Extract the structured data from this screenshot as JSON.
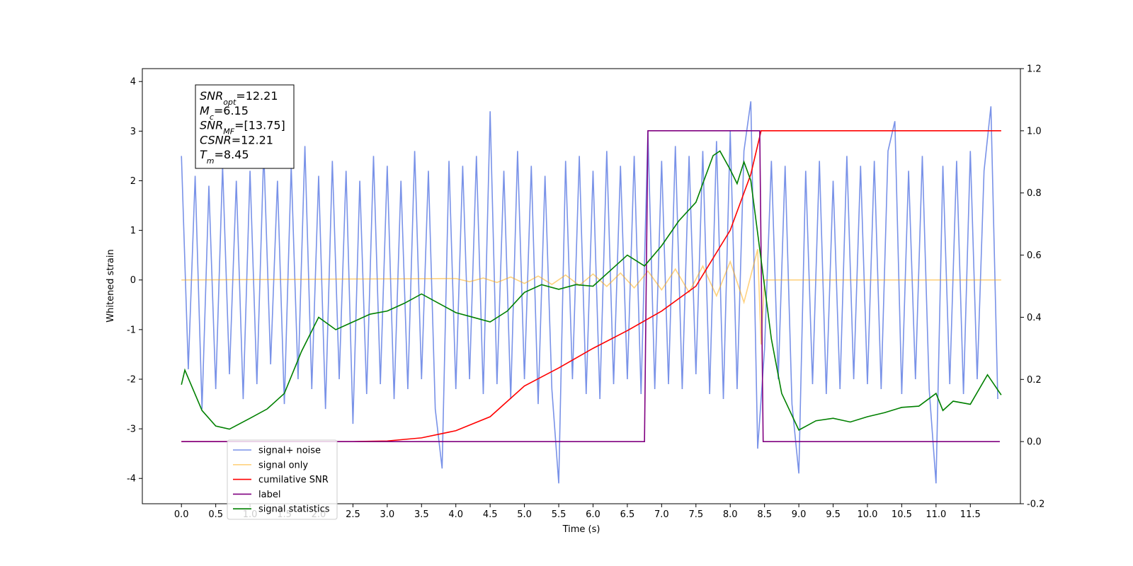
{
  "chart_data": {
    "type": "line",
    "xlabel": "Time (s)",
    "ylabel": "Whitened strain",
    "xlim": [
      -0.57,
      12.23
    ],
    "ylim": [
      -4.51,
      4.26
    ],
    "y2lim": [
      -0.2,
      1.2
    ],
    "xticks": [
      {
        "value": 0,
        "label": "0.0"
      },
      0.5,
      {
        "value": 1,
        "label": "1.0"
      },
      1.5,
      {
        "value": 2,
        "label": "2.0"
      },
      2.5,
      {
        "value": 3,
        "label": "3.0"
      },
      3.5,
      {
        "value": 4,
        "label": "4.0"
      },
      4.5,
      {
        "value": 5,
        "label": "5.0"
      },
      5.5,
      {
        "value": 6,
        "label": "6.0"
      },
      6.5,
      {
        "value": 7,
        "label": "7.0"
      },
      7.5,
      {
        "value": 8,
        "label": "8.0"
      },
      8.5,
      {
        "value": 9,
        "label": "9.0"
      },
      9.5,
      {
        "value": 10,
        "label": "10.0"
      },
      10.5,
      {
        "value": 11,
        "label": "11.0"
      },
      11.5
    ],
    "yticks": [
      -4,
      -3,
      -2,
      -1,
      0,
      1,
      2,
      3,
      4
    ],
    "y2ticks": [
      -0.2,
      {
        "value": 0,
        "label": "0.0"
      },
      0.2,
      0.4,
      0.6,
      0.8,
      {
        "value": 1,
        "label": "1.0"
      },
      1.2
    ],
    "legend_loc": "lower left",
    "annotations": [
      {
        "main": "SNR",
        "sub": "opt",
        "rest": "=12.21"
      },
      {
        "main": "M",
        "sub": "c",
        "rest": "=6.15"
      },
      {
        "main": "SNR",
        "sub": "MF",
        "rest": "=[13.75]"
      },
      {
        "main": "CSNR",
        "rest": "=12.21"
      },
      {
        "main": "T",
        "sub": "m",
        "rest": "=8.45"
      }
    ],
    "series": [
      {
        "name": "signal+ noise",
        "color": "#6a86e5",
        "opacity": 0.9,
        "x": [
          0,
          0.1,
          0.2,
          0.3,
          0.4,
          0.5,
          0.6,
          0.7,
          0.8,
          0.9,
          1,
          1.1,
          1.2,
          1.3,
          1.4,
          1.5,
          1.6,
          1.7,
          1.8,
          1.9,
          2,
          2.1,
          2.2,
          2.3,
          2.4,
          2.5,
          2.6,
          2.7,
          2.8,
          2.9,
          3,
          3.1,
          3.2,
          3.3,
          3.4,
          3.5,
          3.6,
          3.7,
          3.8,
          3.9,
          4,
          4.1,
          4.2,
          4.3,
          4.4,
          4.5,
          4.6,
          4.7,
          4.8,
          4.9,
          5,
          5.1,
          5.2,
          5.3,
          5.4,
          5.5,
          5.6,
          5.7,
          5.8,
          5.9,
          6,
          6.1,
          6.2,
          6.3,
          6.4,
          6.5,
          6.6,
          6.7,
          6.8,
          6.9,
          7,
          7.1,
          7.2,
          7.3,
          7.4,
          7.5,
          7.6,
          7.7,
          7.8,
          7.9,
          8,
          8.1,
          8.2,
          8.3,
          8.4,
          8.5,
          8.6,
          8.7,
          8.8,
          8.9,
          9,
          9.1,
          9.2,
          9.3,
          9.4,
          9.5,
          9.6,
          9.7,
          9.8,
          9.9,
          10,
          10.1,
          10.2,
          10.3,
          10.4,
          10.5,
          10.6,
          10.7,
          10.8,
          10.9,
          11,
          11.1,
          11.2,
          11.3,
          11.4,
          11.5,
          11.6,
          11.7,
          11.8,
          11.9
        ],
        "values": [
          2.5,
          -1.8,
          2.1,
          -2.6,
          1.9,
          -2.2,
          2.3,
          -1.9,
          2.0,
          -2.4,
          2.2,
          -2.1,
          2.6,
          -1.7,
          2.0,
          -2.5,
          2.3,
          -2.0,
          2.7,
          -2.2,
          2.1,
          -2.6,
          2.4,
          -2.0,
          2.2,
          -2.9,
          2.0,
          -2.3,
          2.5,
          -2.1,
          2.3,
          -2.4,
          2.0,
          -2.2,
          2.6,
          -2.0,
          2.2,
          -2.6,
          -3.8,
          2.4,
          -2.2,
          2.3,
          -2.0,
          2.5,
          -2.3,
          3.4,
          -2.1,
          2.2,
          -2.4,
          2.6,
          -2.0,
          2.3,
          -2.5,
          2.1,
          -2.2,
          -4.1,
          2.4,
          -2.0,
          2.5,
          -2.3,
          2.2,
          -2.4,
          2.6,
          -2.1,
          2.3,
          -2.0,
          2.5,
          -2.3,
          3.0,
          -2.2,
          2.4,
          -2.1,
          2.7,
          -2.2,
          2.5,
          -1.9,
          2.6,
          -2.3,
          2.8,
          -2.4,
          3.0,
          -2.2,
          2.6,
          3.6,
          -3.4,
          -1.4,
          2.4,
          -2.0,
          2.3,
          -2.5,
          -3.9,
          2.2,
          -2.1,
          2.4,
          -2.3,
          2.0,
          -2.2,
          2.5,
          -2.0,
          2.3,
          -2.1,
          2.4,
          -2.2,
          2.6,
          3.2,
          -2.3,
          2.2,
          -2.0,
          2.5,
          -2.2,
          -4.1,
          2.3,
          -2.1,
          2.4,
          -2.3,
          2.6,
          -2.0,
          2.2,
          3.5,
          -2.4
        ]
      },
      {
        "name": "signal only",
        "color": "#ffa500",
        "opacity": 0.5,
        "x": [
          0,
          4.0,
          4.2,
          4.4,
          4.6,
          4.8,
          5.0,
          5.2,
          5.4,
          5.6,
          5.8,
          6.0,
          6.2,
          6.4,
          6.6,
          6.8,
          7.0,
          7.2,
          7.4,
          7.6,
          7.8,
          8.0,
          8.2,
          8.4,
          8.45,
          8.5,
          11.95
        ],
        "values": [
          0,
          0.03,
          -0.035,
          0.04,
          -0.05,
          0.06,
          -0.07,
          0.08,
          -0.09,
          0.1,
          -0.11,
          0.12,
          -0.13,
          0.14,
          -0.16,
          0.18,
          -0.2,
          0.22,
          -0.25,
          0.28,
          -0.32,
          0.37,
          -0.45,
          0.62,
          -1.3,
          0,
          0
        ]
      },
      {
        "name": "cumilative SNR",
        "color": "#ff0000",
        "axis": "y2",
        "x": [
          0,
          1,
          2,
          2.5,
          3,
          3.5,
          4,
          4.5,
          5,
          5.5,
          6,
          6.5,
          7,
          7.5,
          8,
          8.3,
          8.45,
          11.95
        ],
        "values": [
          0,
          0,
          0,
          0,
          0.002,
          0.012,
          0.035,
          0.08,
          0.179,
          0.237,
          0.3,
          0.357,
          0.42,
          0.5,
          0.68,
          0.86,
          1.0,
          1.0
        ]
      },
      {
        "name": "label",
        "color": "#800080",
        "axis": "y2",
        "x": [
          0,
          6.75,
          6.8,
          8.43,
          8.48,
          11.93
        ],
        "values": [
          0,
          0,
          1,
          1,
          0,
          0
        ]
      },
      {
        "name": "signal statistics",
        "color": "#008000",
        "axis": "y2",
        "x": [
          0,
          0.05,
          0.3,
          0.5,
          0.7,
          1.0,
          1.25,
          1.5,
          1.75,
          2.0,
          2.25,
          2.5,
          2.75,
          3.0,
          3.25,
          3.5,
          3.75,
          4.0,
          4.25,
          4.5,
          4.75,
          5.0,
          5.25,
          5.5,
          5.75,
          6.0,
          6.25,
          6.5,
          6.75,
          7.0,
          7.25,
          7.5,
          7.75,
          7.85,
          8.0,
          8.1,
          8.2,
          8.3,
          8.45,
          8.6,
          8.75,
          9.0,
          9.25,
          9.5,
          9.75,
          10.0,
          10.25,
          10.5,
          10.75,
          11.0,
          11.1,
          11.25,
          11.5,
          11.75,
          11.95
        ],
        "values": [
          0.183,
          0.23,
          0.1,
          0.05,
          0.04,
          0.075,
          0.105,
          0.155,
          0.29,
          0.4,
          0.36,
          0.385,
          0.41,
          0.42,
          0.445,
          0.475,
          0.445,
          0.415,
          0.4,
          0.385,
          0.42,
          0.48,
          0.505,
          0.49,
          0.505,
          0.5,
          0.55,
          0.6,
          0.565,
          0.63,
          0.71,
          0.77,
          0.92,
          0.935,
          0.875,
          0.83,
          0.9,
          0.84,
          0.585,
          0.33,
          0.155,
          0.037,
          0.067,
          0.075,
          0.063,
          0.08,
          0.093,
          0.11,
          0.114,
          0.155,
          0.1,
          0.13,
          0.12,
          0.215,
          0.15
        ]
      }
    ]
  }
}
